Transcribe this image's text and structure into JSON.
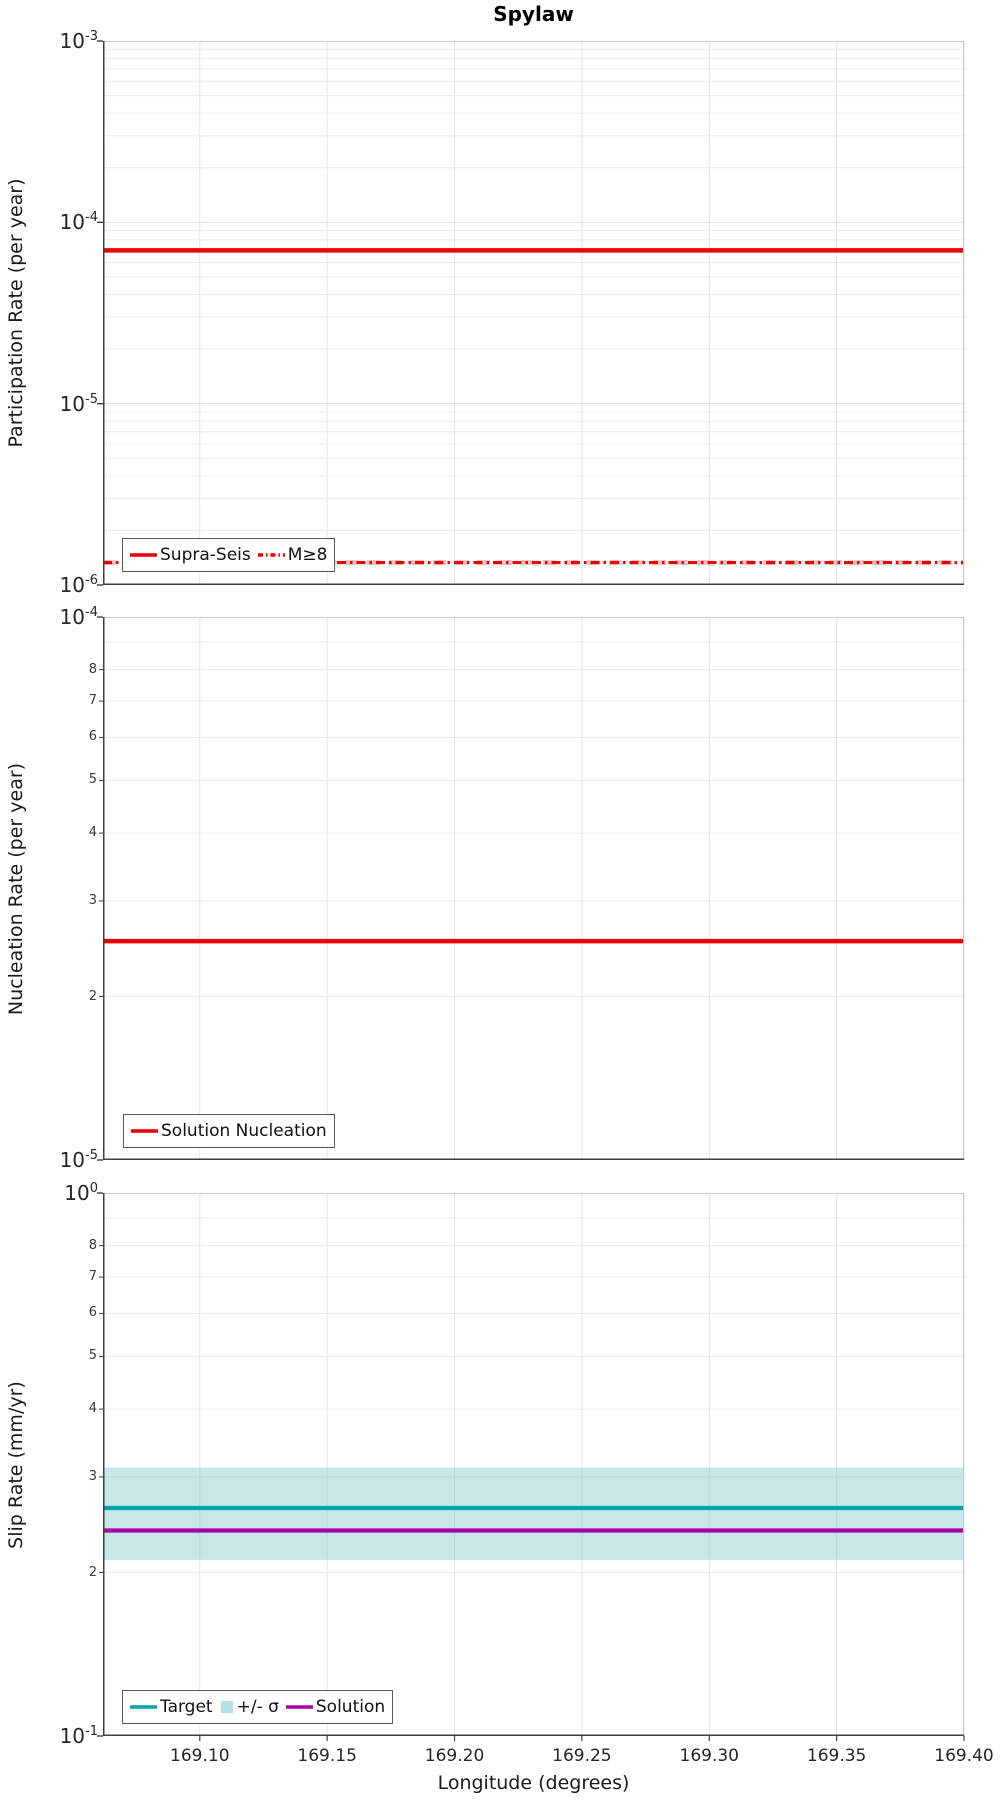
{
  "title": "Spylaw",
  "xlabel": "Longitude (degrees)",
  "x_axis": {
    "range": [
      169.062,
      169.4
    ],
    "tick_values": [
      169.1,
      169.15,
      169.2,
      169.25,
      169.3,
      169.35,
      169.4
    ],
    "tick_labels": [
      "169.10",
      "169.15",
      "169.20",
      "169.25",
      "169.30",
      "169.35",
      "169.40"
    ]
  },
  "colors": {
    "red": "#ee0000",
    "faded_red": "rgba(255,120,120,0.45)",
    "teal": "#00a4ac",
    "purple": "#aa00aa",
    "band_cyan": "rgba(128,204,204,0.45)",
    "legend_patch_cyan": "rgba(128,204,204,0.60)"
  },
  "chart_data": [
    {
      "type": "line",
      "name": "participation-rate",
      "ylabel": "Participation Rate (per year)",
      "y_scale": "log",
      "y_range": [
        1e-06,
        0.001
      ],
      "y_major_exponents": [
        -3,
        -4,
        -5,
        -6
      ],
      "y_minor": {
        "labels": [],
        "values": []
      },
      "series": [
        {
          "label": "Supra-Seis",
          "y_value": 7e-05,
          "color": "#ee0000",
          "style": "solid",
          "width": 4.5
        },
        {
          "label": "M≥8 faded",
          "y_value": 1.33e-06,
          "color": "rgba(255,120,120,0.45)",
          "style": "dashed",
          "width": 5
        },
        {
          "label": "M≥8",
          "y_value": 1.33e-06,
          "color": "#ee0000",
          "style": "dashdot",
          "width": 3.2
        }
      ],
      "legend": [
        {
          "label": "Supra-Seis",
          "swatch": "line",
          "color": "#ee0000",
          "style": "solid"
        },
        {
          "label": "M≥8",
          "swatch": "line",
          "color": "#ee0000",
          "style": "dashdot"
        }
      ]
    },
    {
      "type": "line",
      "name": "nucleation-rate",
      "ylabel": "Nucleation Rate (per year)",
      "y_scale": "log",
      "y_range": [
        1e-05,
        0.0001
      ],
      "y_major_exponents": [
        -4,
        -5
      ],
      "y_minor": {
        "labels": [
          "8",
          "7",
          "6",
          "5",
          "4",
          "3",
          "2"
        ],
        "values": [
          8e-05,
          7e-05,
          6e-05,
          5e-05,
          4e-05,
          3e-05,
          2e-05
        ]
      },
      "series": [
        {
          "label": "Solution Nucleation",
          "y_value": 2.53e-05,
          "color": "#ee0000",
          "style": "solid",
          "width": 4.5
        }
      ],
      "legend": [
        {
          "label": "Solution Nucleation",
          "swatch": "line",
          "color": "#ee0000",
          "style": "solid"
        }
      ]
    },
    {
      "type": "line",
      "name": "slip-rate",
      "ylabel": "Slip Rate (mm/yr)",
      "y_scale": "log",
      "y_range": [
        0.1,
        1.0
      ],
      "y_major_exponents": [
        0,
        -1
      ],
      "y_minor": {
        "labels": [
          "8",
          "7",
          "6",
          "5",
          "4",
          "3",
          "2"
        ],
        "values": [
          0.8,
          0.7,
          0.6,
          0.5,
          0.4,
          0.3,
          0.2
        ]
      },
      "band": {
        "label": "+/- σ",
        "y_top": 0.312,
        "y_bottom": 0.211,
        "color": "rgba(128,204,204,0.45)"
      },
      "series": [
        {
          "label": "Target",
          "y_value": 0.263,
          "color": "#00a4ac",
          "style": "solid",
          "width": 4.2
        },
        {
          "label": "Solution",
          "y_value": 0.239,
          "color": "#aa00aa",
          "style": "solid",
          "width": 4.2
        }
      ],
      "legend": [
        {
          "label": "Target",
          "swatch": "line",
          "color": "#00a4ac",
          "style": "solid"
        },
        {
          "label": "+/- σ",
          "swatch": "patch",
          "color": "rgba(128,204,204,0.60)",
          "style": "solid"
        },
        {
          "label": "Solution",
          "swatch": "line",
          "color": "#aa00aa",
          "style": "solid"
        }
      ]
    }
  ]
}
